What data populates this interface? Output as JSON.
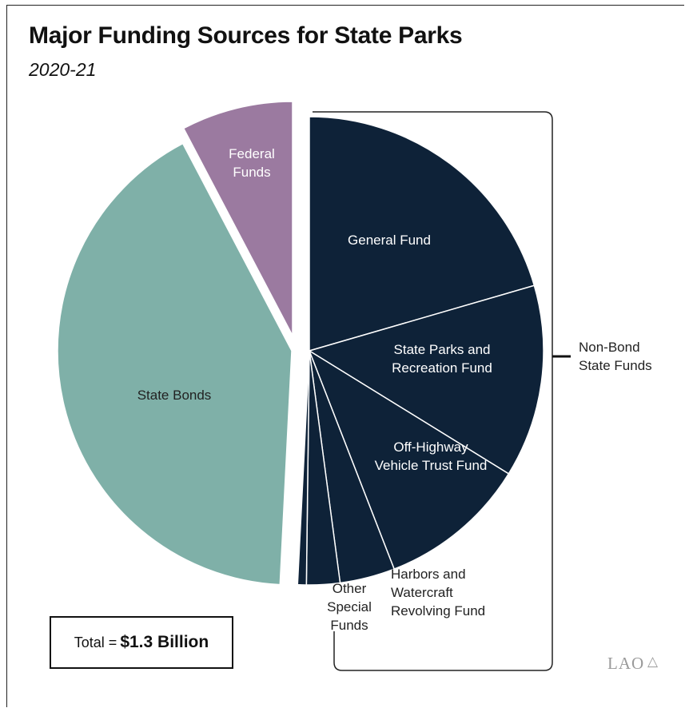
{
  "chart_data": {
    "type": "pie",
    "title": "Major Funding Sources for State Parks",
    "subtitle": "2020-21",
    "unit": "percent",
    "slices": [
      {
        "name": "General Fund",
        "label_lines": [
          "General Fund"
        ],
        "value": 20.5,
        "color": "#0e2238",
        "group": "Non-Bond State Funds"
      },
      {
        "name": "State Parks and Recreation Fund",
        "label_lines": [
          "State Parks and",
          "Recreation Fund"
        ],
        "value": 13.3,
        "color": "#0e2238",
        "group": "Non-Bond State Funds"
      },
      {
        "name": "Off-Highway Vehicle Trust Fund",
        "label_lines": [
          "Off-Highway",
          "Vehicle Trust Fund"
        ],
        "value": 10.3,
        "color": "#0e2238",
        "group": "Non-Bond State Funds"
      },
      {
        "name": "Harbors and Watercraft Revolving Fund",
        "label_lines": [
          "Harbors and",
          "Watercraft",
          "Revolving Fund"
        ],
        "value": 3.8,
        "color": "#0e2238",
        "group": "Non-Bond State Funds"
      },
      {
        "name": "Other Special Funds",
        "label_lines": [
          "Other",
          "Special",
          "Funds"
        ],
        "value": 2.3,
        "color": "#0e2238",
        "group": "Non-Bond State Funds"
      },
      {
        "name": "",
        "label_lines": [],
        "value": 0.6,
        "color": "#0e2238",
        "group": "Non-Bond State Funds"
      },
      {
        "name": "State Bonds",
        "label_lines": [
          "State Bonds"
        ],
        "value": 41.5,
        "color": "#7fb0a8",
        "group": "State Bonds"
      },
      {
        "name": "Federal Funds",
        "label_lines": [
          "Federal",
          "Funds"
        ],
        "value": 7.7,
        "color": "#9b7aa0",
        "group": "Federal Funds"
      }
    ],
    "bracket_label_lines": [
      "Non-Bond",
      "State Funds"
    ],
    "total": {
      "prefix": "Total = ",
      "amount": "$1.3 Billion"
    }
  },
  "logo_text": "LAO"
}
